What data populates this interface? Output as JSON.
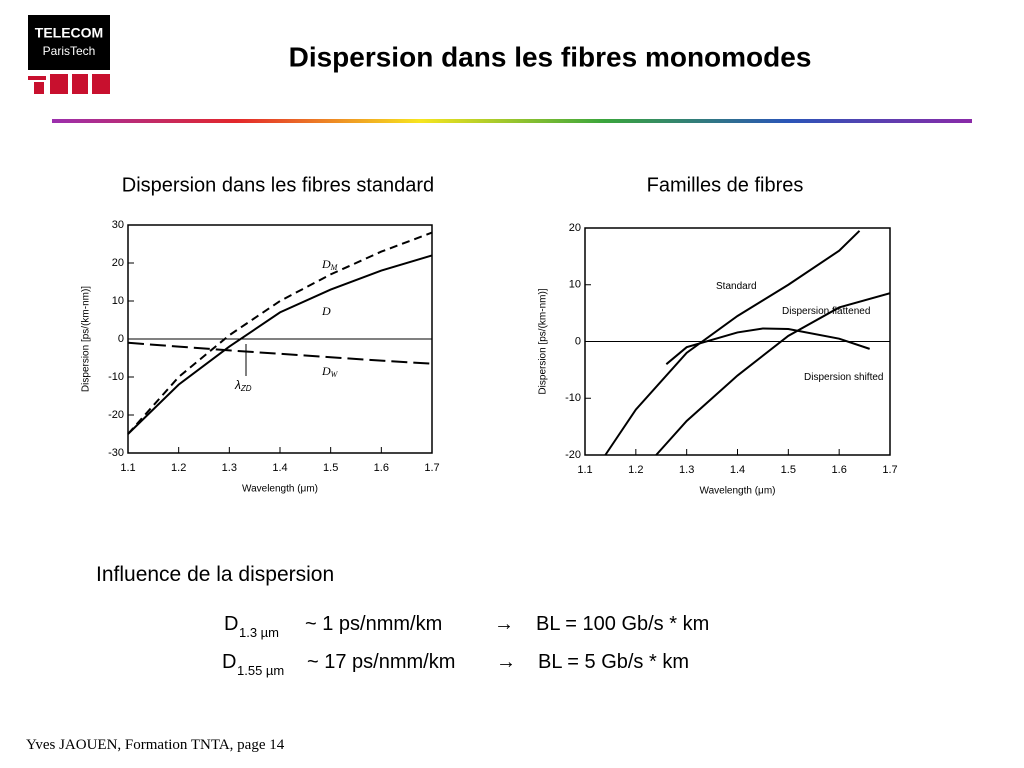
{
  "header": {
    "title": "Dispersion dans les fibres monomodes",
    "logo_line1": "TELECOM",
    "logo_line2": "ParisTech"
  },
  "chart_data": [
    {
      "type": "line",
      "title": "Dispersion dans les fibres standard",
      "x_label": "Wavelength (μm)",
      "y_label": "Dispersion [ps/(km-nm)]",
      "xlim": [
        1.1,
        1.7
      ],
      "xticks": [
        1.1,
        1.2,
        1.3,
        1.4,
        1.5,
        1.6,
        1.7
      ],
      "ylim": [
        -30,
        30
      ],
      "yticks": [
        -30,
        -20,
        -10,
        0,
        10,
        20,
        30
      ],
      "series": [
        {
          "name": "D",
          "subscript": "M",
          "color": "#000000",
          "style": "dashed",
          "x": [
            1.1,
            1.2,
            1.3,
            1.4,
            1.5,
            1.6,
            1.7
          ],
          "values": [
            -25,
            -10,
            1,
            10,
            17,
            23,
            28
          ]
        },
        {
          "name": "D",
          "color": "#000000",
          "style": "solid",
          "x": [
            1.1,
            1.2,
            1.3,
            1.4,
            1.5,
            1.6,
            1.7
          ],
          "values": [
            -25,
            -12,
            -2,
            7,
            13,
            18,
            22
          ]
        },
        {
          "name": "D",
          "subscript": "W",
          "color": "#000000",
          "style": "longdash",
          "x": [
            1.1,
            1.2,
            1.3,
            1.4,
            1.5,
            1.6,
            1.7
          ],
          "values": [
            -1,
            -2,
            -3,
            -3.9,
            -4.8,
            -5.7,
            -6.5
          ]
        }
      ],
      "annotation": {
        "text": "λ",
        "subscript": "ZD"
      }
    },
    {
      "type": "line",
      "title": "Familles de fibres",
      "x_label": "Wavelength (μm)",
      "y_label": "Dispersion [ps/(km-nm)]",
      "xlim": [
        1.1,
        1.7
      ],
      "xticks": [
        1.1,
        1.2,
        1.3,
        1.4,
        1.5,
        1.6,
        1.7
      ],
      "ylim": [
        -20,
        20
      ],
      "yticks": [
        -20,
        -10,
        0,
        10,
        20
      ],
      "series": [
        {
          "name": "Standard",
          "color": "#000000",
          "style": "solid",
          "x": [
            1.14,
            1.2,
            1.3,
            1.4,
            1.5,
            1.6,
            1.64
          ],
          "values": [
            -20,
            -12,
            -2,
            4.5,
            10,
            16,
            19.5
          ]
        },
        {
          "name": "Dispersion flattened",
          "color": "#000000",
          "style": "solid",
          "x": [
            1.26,
            1.3,
            1.4,
            1.45,
            1.5,
            1.6,
            1.66
          ],
          "values": [
            -4,
            -1,
            1.6,
            2.3,
            2.2,
            0.5,
            -1.3
          ]
        },
        {
          "name": "Dispersion shifted",
          "color": "#000000",
          "style": "solid",
          "x": [
            1.24,
            1.3,
            1.4,
            1.5,
            1.6,
            1.7
          ],
          "values": [
            -20,
            -14,
            -6,
            1,
            6,
            8.5
          ]
        }
      ]
    }
  ],
  "section": {
    "title": "Influence de la dispersion",
    "rows": [
      {
        "symbol": "D",
        "subscript": "1.3 µm",
        "approx": "~ 1 ps/nmm/km",
        "arrow": "→",
        "result": "BL = 100 Gb/s * km"
      },
      {
        "symbol": "D",
        "subscript": "1.55 µm",
        "approx": "~ 17 ps/nmm/km",
        "arrow": "→",
        "result": "BL = 5 Gb/s * km"
      }
    ]
  },
  "footer": {
    "text": "Yves JAOUEN, Formation TNTA, page  14"
  }
}
